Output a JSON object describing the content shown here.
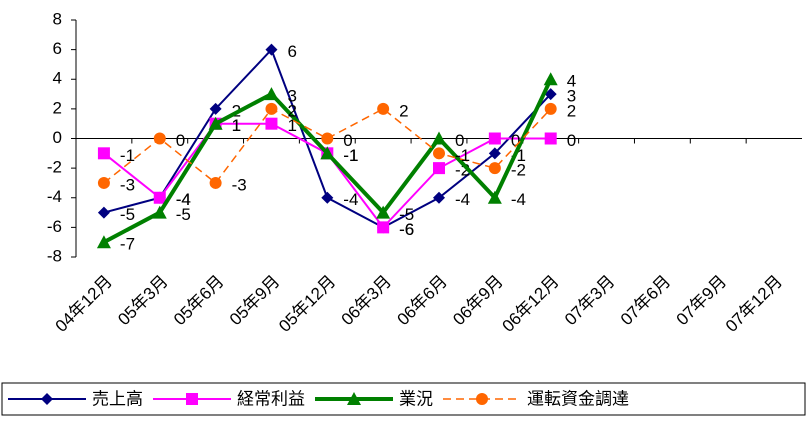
{
  "chart_data": {
    "type": "line",
    "categories": [
      "04年12月",
      "05年3月",
      "05年6月",
      "05年9月",
      "05年12月",
      "06年3月",
      "06年6月",
      "06年9月",
      "06年12月",
      "07年3月",
      "07年6月",
      "07年9月",
      "07年12月"
    ],
    "series": [
      {
        "name": "売上高",
        "color": "#000080",
        "marker": "diamond",
        "dash": false,
        "width": 2,
        "values": [
          -5,
          -4,
          2,
          6,
          -4,
          -6,
          -4,
          -1,
          3,
          null,
          null,
          null,
          null
        ]
      },
      {
        "name": "経常利益",
        "color": "#ff00ff",
        "marker": "square",
        "dash": false,
        "width": 2,
        "values": [
          -1,
          -4,
          1,
          1,
          -1,
          -6,
          -2,
          0,
          0,
          null,
          null,
          null,
          null
        ]
      },
      {
        "name": "業況",
        "color": "#008000",
        "marker": "triangle",
        "dash": false,
        "width": 4,
        "values": [
          -7,
          -5,
          1,
          3,
          -1,
          -5,
          0,
          -4,
          4,
          null,
          null,
          null,
          null
        ]
      },
      {
        "name": "運転資金調達",
        "color": "#ff6600",
        "marker": "circle",
        "dash": true,
        "width": 1.5,
        "values": [
          -3,
          0,
          -3,
          2,
          0,
          2,
          -1,
          -2,
          2,
          null,
          null,
          null,
          null
        ]
      }
    ],
    "ylim": [
      -8,
      8
    ],
    "yticks": [
      -8,
      -6,
      -4,
      -2,
      0,
      2,
      4,
      6,
      8
    ],
    "legend": "bottom"
  }
}
